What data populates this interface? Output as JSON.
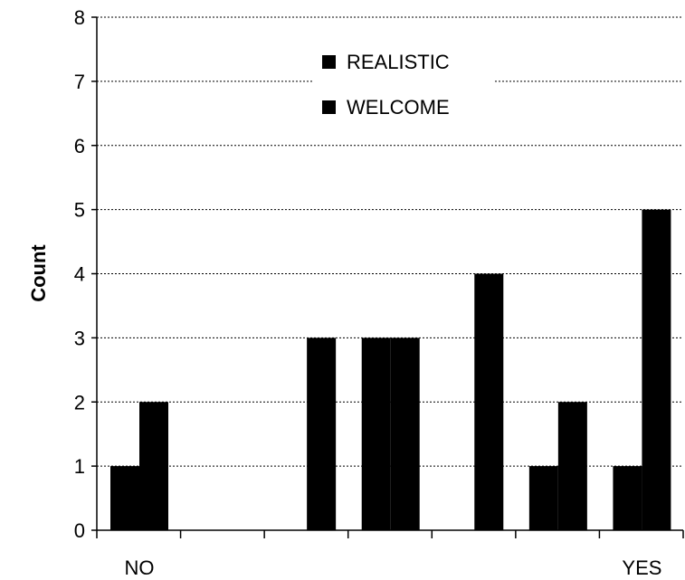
{
  "chart_data": {
    "type": "bar",
    "ylabel": "Count",
    "ylim": [
      0,
      8
    ],
    "y_ticks": [
      "0",
      "1",
      "2",
      "3",
      "4",
      "5",
      "6",
      "7",
      "8"
    ],
    "categories": [
      "NO",
      "",
      "",
      "",
      "",
      "",
      "YES"
    ],
    "x_tick_labels": [
      {
        "index": 0,
        "text": "NO"
      },
      {
        "index": 6,
        "text": "YES"
      }
    ],
    "grid": true,
    "legend_placement": "top-center",
    "series": [
      {
        "name": "REALISTIC",
        "color": "#000000",
        "values": [
          1,
          0,
          0,
          3,
          0,
          1,
          1
        ]
      },
      {
        "name": "WELCOME",
        "color": "#000000",
        "values": [
          2,
          0,
          3,
          3,
          4,
          2,
          5
        ]
      }
    ]
  }
}
